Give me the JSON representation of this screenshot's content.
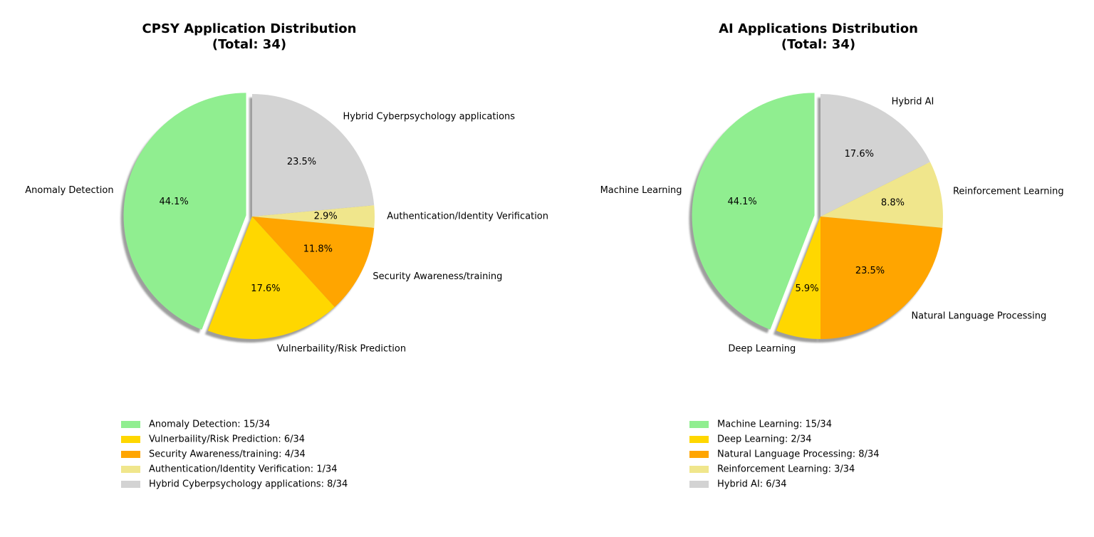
{
  "chart_data": [
    {
      "type": "pie",
      "title": "CPSY Application Distribution\n(Total: 34)",
      "total": 34,
      "start_angle_deg": 90,
      "explode_first": true,
      "shadow": true,
      "legend_position": "bottom",
      "slices": [
        {
          "label": "Anomaly Detection",
          "value": 15,
          "pct_label": "44.1%",
          "legend": "Anomaly Detection: 15/34",
          "color": "#90ee90"
        },
        {
          "label": "Vulnerbaility/Risk Prediction",
          "value": 6,
          "pct_label": "17.6%",
          "legend": "Vulnerbaility/Risk Prediction: 6/34",
          "color": "#ffd700"
        },
        {
          "label": "Security Awareness/training",
          "value": 4,
          "pct_label": "11.8%",
          "legend": "Security Awareness/training: 4/34",
          "color": "#ffa500"
        },
        {
          "label": "Authentication/Identity Verification",
          "value": 1,
          "pct_label": "2.9%",
          "legend": "Authentication/Identity Verification: 1/34",
          "color": "#f0e68c"
        },
        {
          "label": "Hybrid Cyberpsychology applications",
          "value": 8,
          "pct_label": "23.5%",
          "legend": "Hybrid Cyberpsychology applications: 8/34",
          "color": "#d3d3d3"
        }
      ]
    },
    {
      "type": "pie",
      "title": "AI Applications Distribution\n(Total: 34)",
      "total": 34,
      "start_angle_deg": 90,
      "explode_first": true,
      "shadow": true,
      "legend_position": "bottom",
      "slices": [
        {
          "label": "Machine Learning",
          "value": 15,
          "pct_label": "44.1%",
          "legend": "Machine Learning: 15/34",
          "color": "#90ee90"
        },
        {
          "label": "Deep Learning",
          "value": 2,
          "pct_label": "5.9%",
          "legend": "Deep Learning: 2/34",
          "color": "#ffd700"
        },
        {
          "label": "Natural Language Processing",
          "value": 8,
          "pct_label": "23.5%",
          "legend": "Natural Language Processing: 8/34",
          "color": "#ffa500"
        },
        {
          "label": "Reinforcement Learning",
          "value": 3,
          "pct_label": "8.8%",
          "legend": "Reinforcement Learning: 3/34",
          "color": "#f0e68c"
        },
        {
          "label": "Hybrid AI",
          "value": 6,
          "pct_label": "17.6%",
          "legend": "Hybrid AI: 6/34",
          "color": "#d3d3d3"
        }
      ]
    }
  ]
}
